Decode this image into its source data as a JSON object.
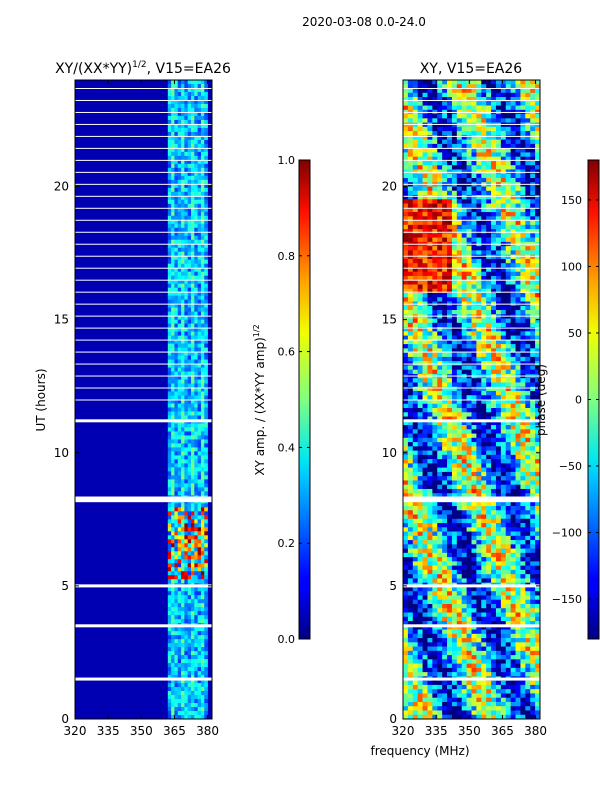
{
  "figure": {
    "suptitle": "2020-03-08 0.0-24.0",
    "shared_xlabel": "frequency (MHz)"
  },
  "chart_data": [
    {
      "type": "heatmap",
      "title_base": "XY/(XX*YY)",
      "title_sup": "1/2",
      "title_rest": ", V15=EA26",
      "ylabel": "UT (hours)",
      "xlabel": "",
      "xlim": [
        320,
        382
      ],
      "ylim": [
        0,
        24
      ],
      "xticks": [
        "320",
        "335",
        "350",
        "365",
        "380"
      ],
      "xtick_values": [
        320,
        335,
        350,
        365,
        380
      ],
      "yticks": [
        "0",
        "5",
        "10",
        "15",
        "20"
      ],
      "ytick_values": [
        0,
        5,
        10,
        15,
        20
      ],
      "colorbar": {
        "label_base": "XY amp. / (XX*YY amp)",
        "label_sup": "1/2",
        "ticks": [
          "0.0",
          "0.2",
          "0.4",
          "0.6",
          "0.8",
          "1.0"
        ],
        "tick_values": [
          0.0,
          0.2,
          0.4,
          0.6,
          0.8,
          1.0
        ],
        "range": [
          0.0,
          1.0
        ],
        "colormap": "jet"
      },
      "features": {
        "background_level": 0.05,
        "band_freq_range_mhz": [
          362,
          380
        ],
        "band_level": 0.3,
        "flare_hours": [
          5.3,
          8.0
        ],
        "flagged_hours": [
          1.5,
          3.5,
          5.0,
          8.2,
          8.3,
          11.2
        ]
      }
    },
    {
      "type": "heatmap",
      "title": "XY, V15=EA26",
      "ylabel": "",
      "xlabel": "frequency (MHz)",
      "xlim": [
        320,
        382
      ],
      "ylim": [
        0,
        24
      ],
      "xticks": [
        "320",
        "335",
        "350",
        "365",
        "380"
      ],
      "xtick_values": [
        320,
        335,
        350,
        365,
        380
      ],
      "yticks": [
        "0",
        "5",
        "10",
        "15",
        "20"
      ],
      "ytick_values": [
        0,
        5,
        10,
        15,
        20
      ],
      "colorbar": {
        "label": "phase (deg)",
        "ticks": [
          "−150",
          "−100",
          "−50",
          "0",
          "50",
          "100",
          "150"
        ],
        "tick_values": [
          -150,
          -100,
          -50,
          0,
          50,
          100,
          150
        ],
        "range": [
          -180,
          180
        ],
        "colormap": "jet"
      },
      "features": {
        "flagged_hours": [
          1.5,
          3.5,
          5.0,
          8.2,
          8.3,
          11.2
        ]
      }
    }
  ]
}
